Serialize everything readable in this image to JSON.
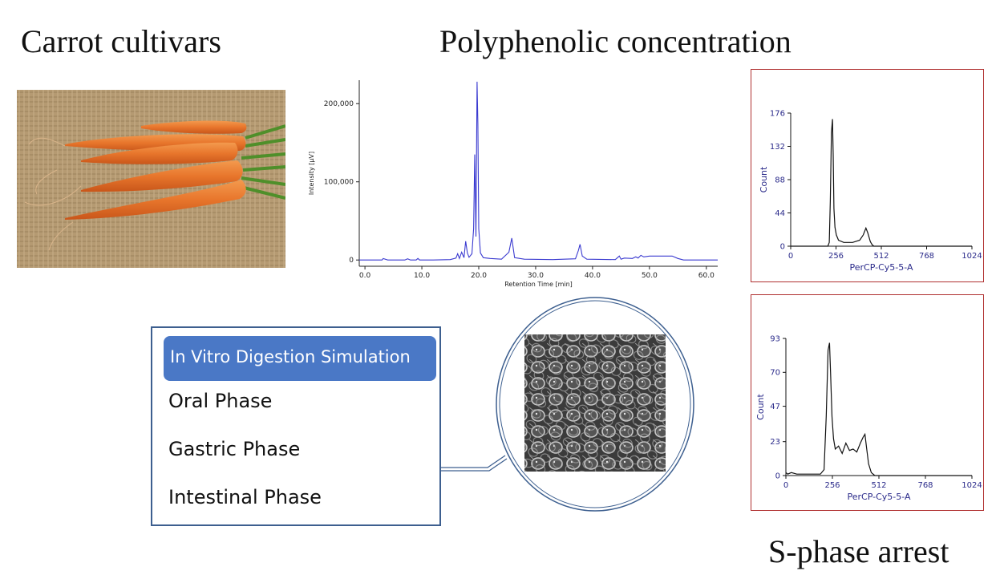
{
  "titles": {
    "carrot_cultivars": "Carrot cultivars",
    "polyphenolic": "Polyphenolic concentration",
    "s_phase": "S-phase arrest"
  },
  "colors": {
    "hplc_line": "#3a3ad0",
    "flow_frame": "#b03030",
    "flow_axis_text": "#2a2a8a",
    "digestion_header": "#4a78c6",
    "digestion_border": "#3d5f8f",
    "carrot": "#e8762c"
  },
  "digestion": {
    "header": "In Vitro Digestion Simulation",
    "phases": [
      "Oral Phase",
      "Gastric Phase",
      "Intestinal Phase"
    ]
  },
  "chart_data": [
    {
      "type": "line",
      "name": "hplc-chromatogram",
      "xlabel": "Retention Time [min]",
      "ylabel": "Intensity [µV]",
      "xlim": [
        -1,
        62
      ],
      "ylim": [
        -8000,
        230000
      ],
      "xticks": [
        "0.0",
        "10.0",
        "20.0",
        "30.0",
        "40.0",
        "50.0",
        "60.0"
      ],
      "xtick_values": [
        0,
        10,
        20,
        30,
        40,
        50,
        60
      ],
      "yticks": [
        "0",
        "100,000",
        "200,000"
      ],
      "ytick_values": [
        0,
        100000,
        200000
      ],
      "x": [
        -1,
        2,
        3,
        3.2,
        4,
        7,
        7.5,
        8,
        9,
        9.3,
        9.6,
        12,
        15,
        16,
        16.3,
        16.6,
        17,
        17.4,
        17.7,
        18.0,
        18.3,
        18.8,
        19.1,
        19.3,
        19.5,
        19.7,
        19.85,
        20.0,
        20.3,
        20.8,
        22,
        24,
        25.3,
        25.8,
        26.3,
        28,
        33,
        37,
        37.5,
        37.8,
        38.2,
        39,
        44,
        44.7,
        45,
        45.6,
        47,
        47.6,
        48,
        48.5,
        49,
        50,
        54,
        55,
        56,
        62
      ],
      "y": [
        0,
        0,
        0,
        1800,
        0,
        0,
        1500,
        0,
        0,
        2000,
        0,
        0,
        500,
        2500,
        8000,
        2000,
        10000,
        3000,
        24000,
        9000,
        3500,
        8000,
        40000,
        135000,
        30000,
        228000,
        175000,
        40000,
        9000,
        3000,
        2000,
        1000,
        10000,
        28000,
        3000,
        1000,
        500,
        1500,
        12000,
        20000,
        5000,
        1000,
        500,
        5000,
        1000,
        2500,
        2000,
        4000,
        2500,
        6000,
        4000,
        5000,
        5000,
        2000,
        0,
        0
      ]
    },
    {
      "type": "line",
      "name": "flow-cytometry-histogram-1",
      "xlabel": "PerCP-Cy5-5-A",
      "ylabel": "Count",
      "xlim": [
        0,
        1024
      ],
      "ylim": [
        0,
        176
      ],
      "xticks": [
        "0",
        "256",
        "512",
        "768",
        "1024"
      ],
      "xtick_values": [
        0,
        256,
        512,
        768,
        1024
      ],
      "yticks": [
        "0",
        "44",
        "88",
        "132",
        "176"
      ],
      "ytick_values": [
        0,
        44,
        88,
        132,
        176
      ],
      "x": [
        0,
        200,
        210,
        218,
        224,
        230,
        236,
        240,
        244,
        250,
        258,
        270,
        300,
        350,
        390,
        410,
        425,
        435,
        450,
        460,
        470,
        490,
        1024
      ],
      "y": [
        0,
        0,
        0,
        5,
        60,
        150,
        168,
        120,
        50,
        25,
        15,
        8,
        5,
        5,
        8,
        15,
        24,
        18,
        6,
        2,
        0,
        0,
        0
      ]
    },
    {
      "type": "line",
      "name": "flow-cytometry-histogram-2",
      "xlabel": "PerCP-Cy5-5-A",
      "ylabel": "Count",
      "xlim": [
        0,
        1024
      ],
      "ylim": [
        0,
        93
      ],
      "xticks": [
        "0",
        "256",
        "512",
        "768",
        "1024"
      ],
      "xtick_values": [
        0,
        256,
        512,
        768,
        1024
      ],
      "yticks": [
        "0",
        "23",
        "47",
        "70",
        "93"
      ],
      "ytick_values": [
        0,
        23,
        47,
        70,
        93
      ],
      "x": [
        0,
        10,
        30,
        60,
        100,
        150,
        190,
        210,
        222,
        232,
        240,
        246,
        254,
        262,
        272,
        290,
        310,
        330,
        350,
        370,
        390,
        410,
        425,
        435,
        445,
        455,
        470,
        490,
        1024
      ],
      "y": [
        2,
        1,
        2,
        1,
        1,
        1,
        1,
        4,
        40,
        85,
        90,
        70,
        40,
        25,
        18,
        20,
        15,
        22,
        17,
        18,
        16,
        22,
        26,
        28,
        18,
        8,
        2,
        0,
        0
      ]
    }
  ]
}
